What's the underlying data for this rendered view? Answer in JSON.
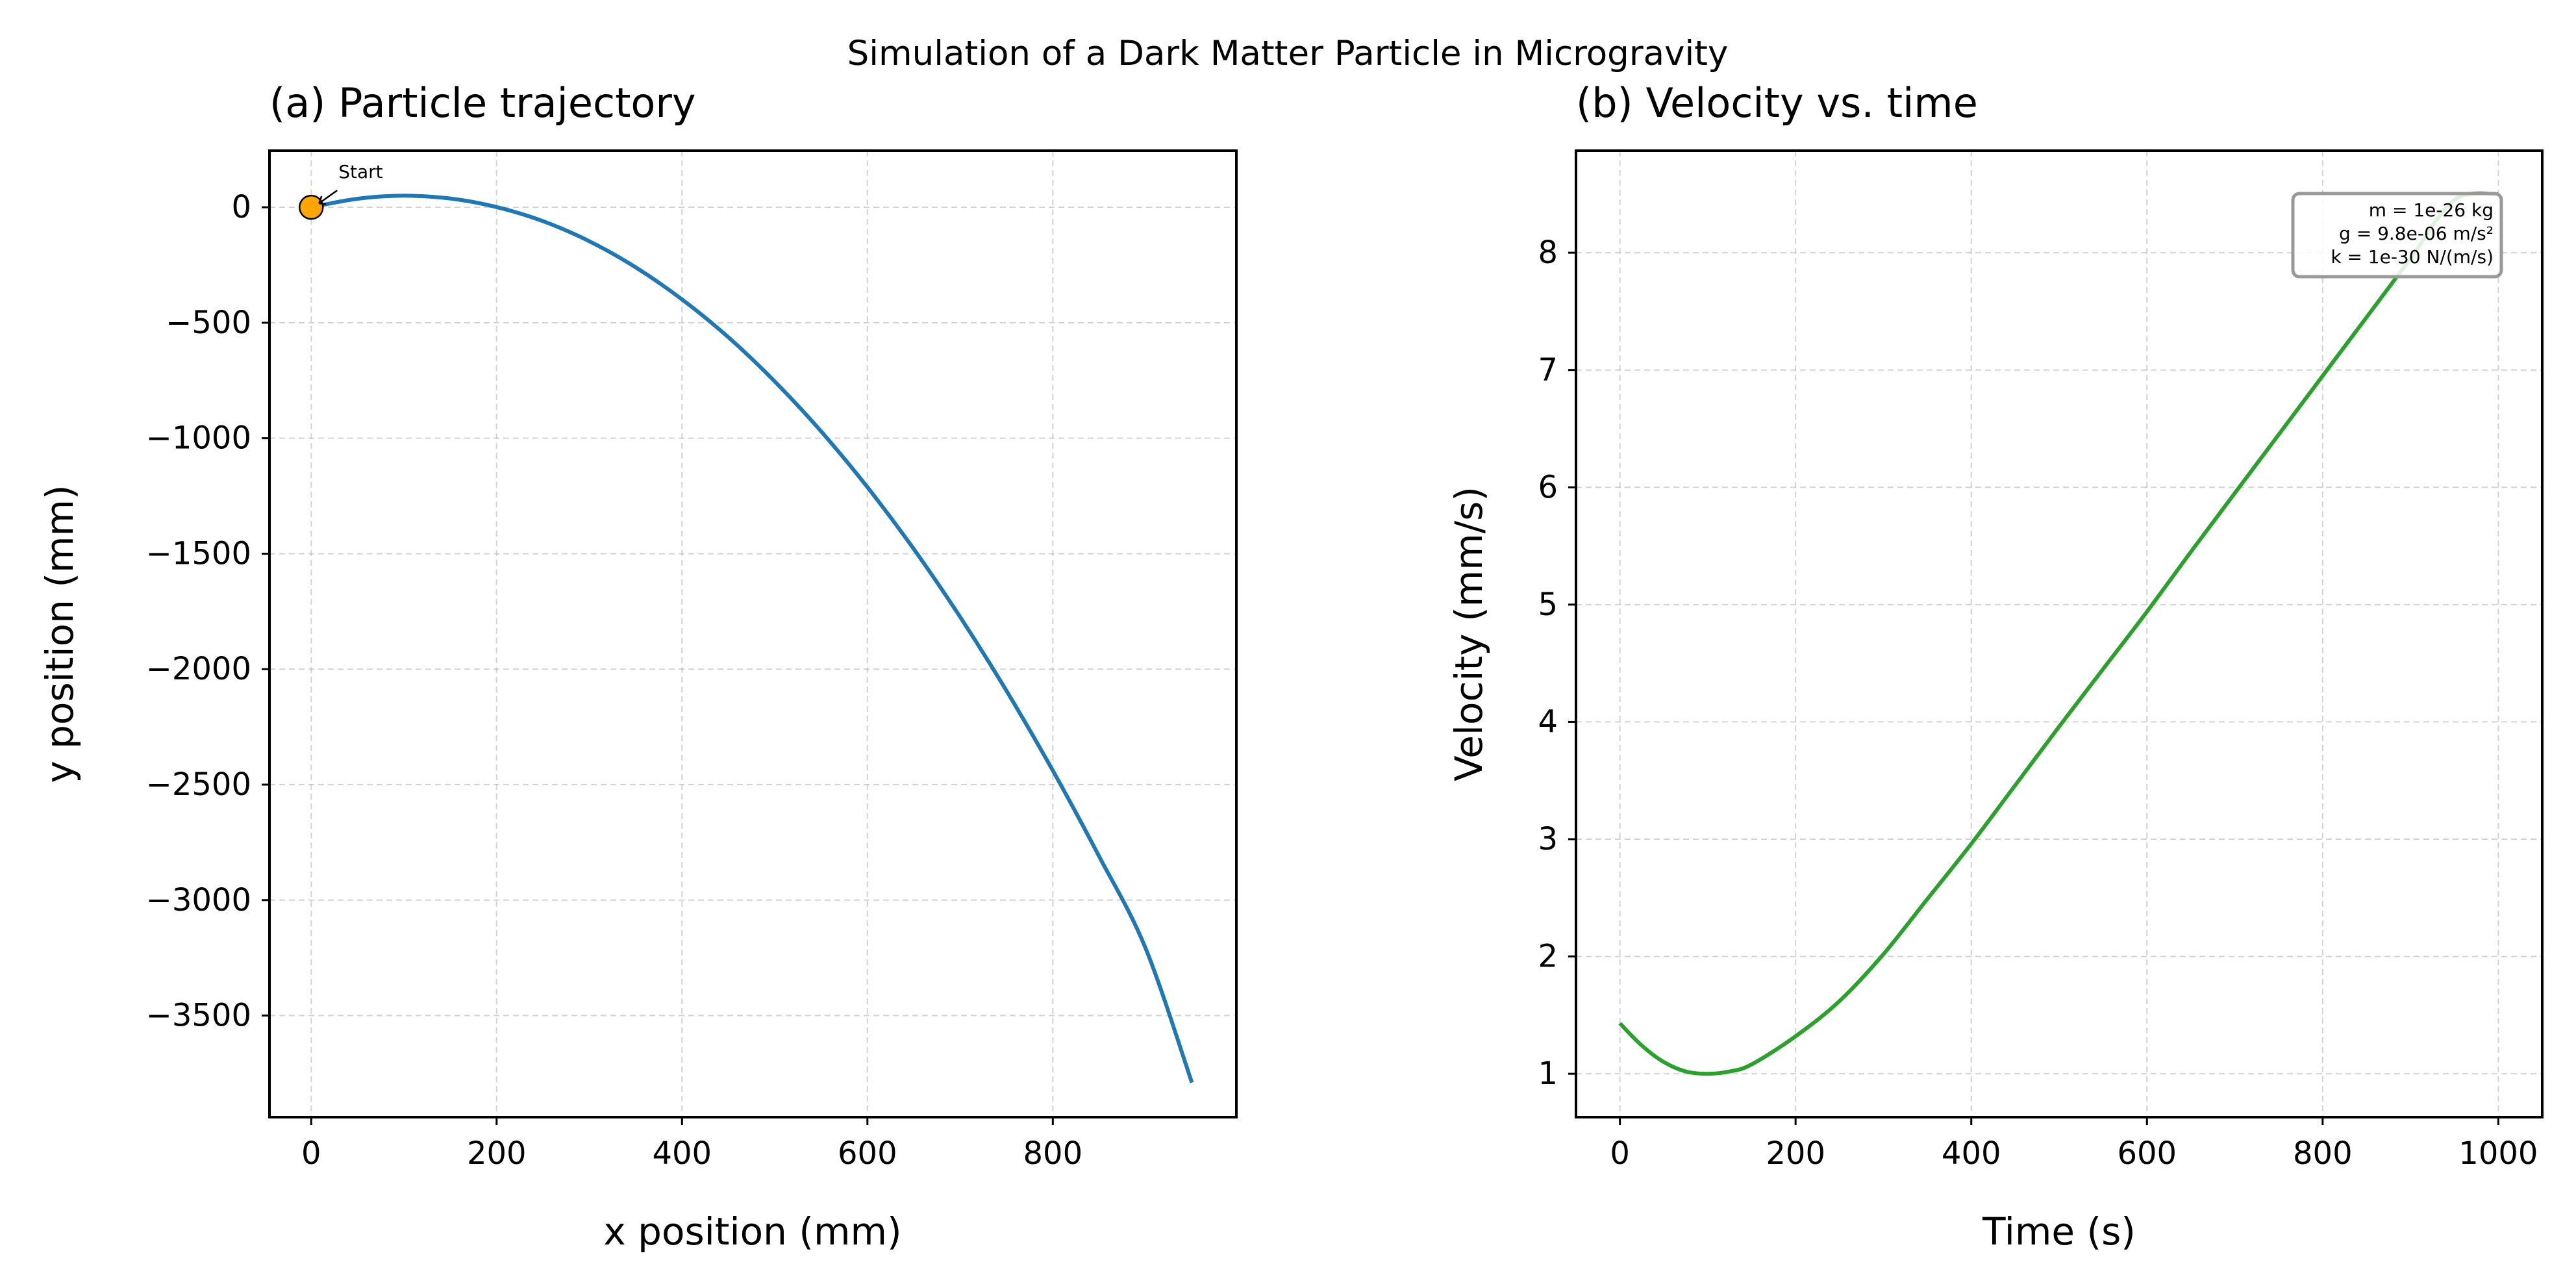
{
  "suptitle": "Simulation of a Dark Matter Particle in Microgravity",
  "chart_data": [
    {
      "type": "line",
      "title": "(a) Particle trajectory",
      "xlabel": "x position (mm)",
      "ylabel": "y position (mm)",
      "xlim": [
        -45,
        998
      ],
      "ylim": [
        -3940,
        245
      ],
      "xticks": [
        0,
        200,
        400,
        600,
        800
      ],
      "xtick_labels": [
        "0",
        "200",
        "400",
        "600",
        "800"
      ],
      "yticks": [
        0,
        -500,
        -1000,
        -1500,
        -2000,
        -2500,
        -3000,
        -3500
      ],
      "ytick_labels": [
        "0",
        "−500",
        "−1000",
        "−1500",
        "−2000",
        "−2500",
        "−3000",
        "−3500"
      ],
      "grid": true,
      "series": [
        {
          "color": "#1f77b4",
          "x": [
            0,
            50,
            100,
            150,
            200,
            250,
            300,
            350,
            400,
            450,
            500,
            550,
            600,
            650,
            700,
            750,
            800,
            850,
            900,
            950
          ],
          "y": [
            0,
            37,
            50,
            38,
            1,
            -60,
            -147,
            -260,
            -399,
            -563,
            -754,
            -970,
            -1212,
            -1480,
            -1774,
            -2094,
            -2439,
            -2811,
            -3208,
            -3790
          ]
        }
      ],
      "annotations": [
        {
          "text": "Start",
          "x": 0,
          "y": 0,
          "marker_color": "#ffa500"
        }
      ]
    },
    {
      "type": "line",
      "title": "(b) Velocity vs. time",
      "xlabel": "Time (s)",
      "ylabel": "Velocity (mm/s)",
      "xlim": [
        -50,
        1050
      ],
      "ylim": [
        0.63,
        8.87
      ],
      "xticks": [
        0,
        200,
        400,
        600,
        800,
        1000
      ],
      "xtick_labels": [
        "0",
        "200",
        "400",
        "600",
        "800",
        "1000"
      ],
      "yticks": [
        1,
        2,
        3,
        4,
        5,
        6,
        7,
        8
      ],
      "ytick_labels": [
        "1",
        "2",
        "3",
        "4",
        "5",
        "6",
        "7",
        "8"
      ],
      "grid": true,
      "series": [
        {
          "color": "#2ca02c",
          "x": [
            0,
            25,
            50,
            75,
            100,
            125,
            150,
            200,
            250,
            300,
            350,
            400,
            450,
            500,
            550,
            600,
            650,
            700,
            750,
            800,
            850,
            900,
            950,
            1000
          ],
          "y": [
            1.43,
            1.24,
            1.1,
            1.02,
            1.0,
            1.02,
            1.08,
            1.32,
            1.62,
            2.02,
            2.49,
            2.96,
            3.46,
            3.96,
            4.45,
            4.94,
            5.45,
            5.95,
            6.45,
            6.95,
            7.45,
            7.95,
            8.45,
            8.5
          ]
        }
      ],
      "info_box": [
        "m = 1e-26 kg",
        "g = 9.8e-06 m/s²",
        "k = 1e-30 N/(m/s)"
      ]
    }
  ]
}
